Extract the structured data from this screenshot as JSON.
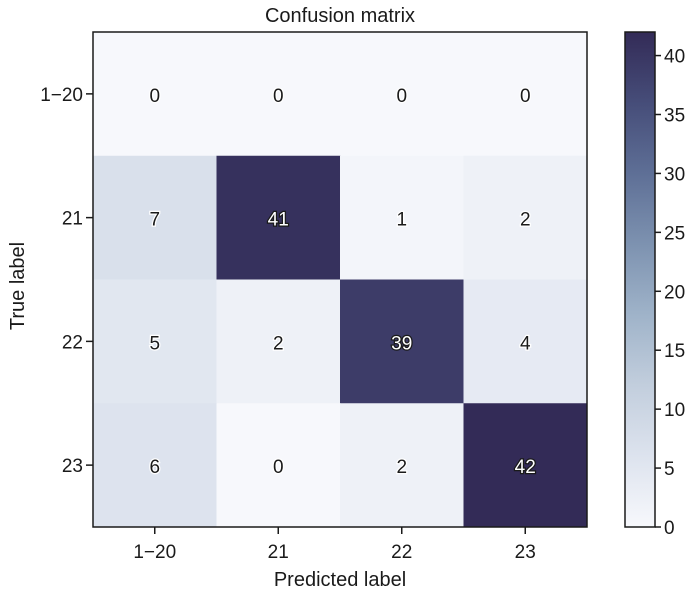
{
  "chart_data": {
    "type": "heatmap",
    "title": "Confusion matrix",
    "xlabel": "Predicted label",
    "ylabel": "True label",
    "x_categories": [
      "1−20",
      "21",
      "22",
      "23"
    ],
    "y_categories": [
      "1−20",
      "21",
      "22",
      "23"
    ],
    "matrix": [
      [
        0,
        0,
        0,
        0
      ],
      [
        7,
        41,
        1,
        2
      ],
      [
        5,
        2,
        39,
        4
      ],
      [
        6,
        0,
        2,
        42
      ]
    ],
    "colorbar": {
      "min": 0,
      "max": 42,
      "ticks": [
        "0",
        "5",
        "10",
        "15",
        "20",
        "25",
        "30",
        "35",
        "40"
      ]
    },
    "colormap": [
      "#f7f8fc",
      "#dde3ee",
      "#c2cedd",
      "#9fb3c9",
      "#7d92b0",
      "#5e6f96",
      "#464d79",
      "#332b57"
    ]
  }
}
